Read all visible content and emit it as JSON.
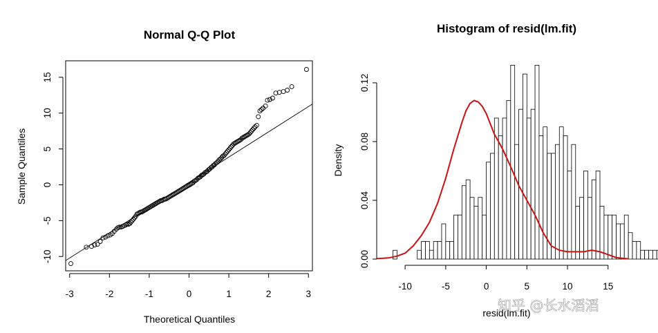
{
  "chart_data": [
    {
      "type": "scatter",
      "title": "Normal Q-Q Plot",
      "xlabel": "Theoretical Quantiles",
      "ylabel": "Sample Quantiles",
      "xlim": [
        -3.1,
        3.1
      ],
      "ylim": [
        -12,
        17.3
      ],
      "xticks": [
        -3,
        -2,
        -1,
        0,
        1,
        2,
        3
      ],
      "yticks": [
        -10,
        -5,
        0,
        5,
        10,
        15
      ],
      "series": [
        {
          "x": [
            -2.97,
            -2.58,
            -2.45,
            -2.37,
            -2.3,
            -2.23,
            -2.16,
            -2.1,
            -2.04,
            -1.98,
            -1.93,
            -1.88,
            -1.83,
            -1.79,
            -1.75,
            -1.71,
            -1.67,
            -1.63,
            -1.59,
            -1.56,
            -1.52,
            -1.49,
            -1.46,
            -1.43,
            -1.4,
            -1.37,
            -1.34,
            -1.31,
            -1.28,
            -1.25,
            -1.22,
            -1.19,
            -1.16,
            -1.13,
            -1.1,
            -1.07,
            -1.04,
            -1.01,
            -0.98,
            -0.95,
            -0.92,
            -0.89,
            -0.86,
            -0.83,
            -0.8,
            -0.77,
            -0.74,
            -0.71,
            -0.68,
            -0.65,
            -0.62,
            -0.59,
            -0.56,
            -0.53,
            -0.5,
            -0.47,
            -0.44,
            -0.41,
            -0.38,
            -0.35,
            -0.32,
            -0.29,
            -0.26,
            -0.23,
            -0.2,
            -0.17,
            -0.14,
            -0.11,
            -0.08,
            -0.05,
            -0.02,
            0.01,
            0.04,
            0.07,
            0.1,
            0.13,
            0.16,
            0.19,
            0.22,
            0.25,
            0.28,
            0.31,
            0.34,
            0.37,
            0.4,
            0.43,
            0.46,
            0.49,
            0.52,
            0.55,
            0.58,
            0.61,
            0.64,
            0.67,
            0.7,
            0.73,
            0.76,
            0.79,
            0.82,
            0.85,
            0.88,
            0.91,
            0.94,
            0.97,
            1.0,
            1.03,
            1.06,
            1.09,
            1.12,
            1.15,
            1.18,
            1.21,
            1.24,
            1.27,
            1.3,
            1.33,
            1.36,
            1.39,
            1.42,
            1.45,
            1.48,
            1.51,
            1.54,
            1.57,
            1.6,
            1.63,
            1.66,
            1.7,
            1.74,
            1.78,
            1.82,
            1.86,
            1.92,
            1.97,
            2.03,
            2.1,
            2.18,
            2.27,
            2.37,
            2.47,
            2.58,
            2.95
          ],
          "y": [
            -11.0,
            -8.7,
            -8.6,
            -8.4,
            -8.3,
            -7.9,
            -7.4,
            -7.3,
            -7.1,
            -7.0,
            -6.8,
            -6.5,
            -6.2,
            -6.0,
            -5.9,
            -5.9,
            -5.8,
            -5.7,
            -5.6,
            -5.5,
            -5.5,
            -5.4,
            -5.2,
            -5.0,
            -4.8,
            -4.6,
            -4.4,
            -4.1,
            -4.0,
            -3.9,
            -3.8,
            -3.8,
            -3.7,
            -3.6,
            -3.5,
            -3.4,
            -3.3,
            -3.2,
            -3.1,
            -3.0,
            -2.9,
            -2.8,
            -2.7,
            -2.6,
            -2.5,
            -2.4,
            -2.3,
            -2.2,
            -2.2,
            -2.1,
            -2.0,
            -2.0,
            -1.9,
            -1.8,
            -1.7,
            -1.6,
            -1.5,
            -1.4,
            -1.3,
            -1.2,
            -1.1,
            -1.0,
            -0.9,
            -0.8,
            -0.7,
            -0.6,
            -0.5,
            -0.4,
            -0.3,
            -0.2,
            -0.1,
            0.0,
            0.1,
            0.2,
            0.3,
            0.5,
            0.6,
            0.7,
            0.9,
            1.0,
            1.1,
            1.3,
            1.4,
            1.5,
            1.7,
            1.8,
            1.9,
            2.1,
            2.2,
            2.4,
            2.5,
            2.7,
            2.8,
            3.0,
            3.1,
            3.3,
            3.5,
            3.6,
            3.8,
            4.0,
            4.1,
            4.3,
            4.5,
            4.7,
            4.9,
            5.1,
            5.3,
            5.5,
            5.7,
            5.8,
            5.9,
            6.0,
            6.1,
            6.2,
            6.3,
            6.5,
            6.6,
            6.7,
            6.8,
            6.9,
            7.0,
            7.1,
            7.3,
            7.5,
            7.7,
            7.9,
            8.1,
            8.3,
            9.5,
            10.3,
            10.5,
            10.7,
            11.0,
            11.8,
            11.9,
            12.1,
            12.8,
            12.9,
            13.0,
            13.2,
            13.7,
            16.1
          ]
        }
      ],
      "reference_line": {
        "intercept": 0.35,
        "slope": 3.52
      }
    },
    {
      "type": "bar",
      "title": "Histogram of resid(lm.fit)",
      "xlabel": "resid(lm.fit)",
      "ylabel": "Density",
      "xlim": [
        -13.5,
        18
      ],
      "ylim": [
        0,
        0.135
      ],
      "xticks": [
        -10,
        -5,
        0,
        5,
        10,
        15
      ],
      "yticks": [
        0.0,
        0.04,
        0.08,
        0.12
      ],
      "bin_width": 0.5,
      "bin_start": -11.5,
      "densities": [
        0.006,
        0.0,
        0.0,
        0.0,
        0.0,
        0.0,
        0.006,
        0.012,
        0.012,
        0.006,
        0.012,
        0.012,
        0.024,
        0.012,
        0.012,
        0.03,
        0.03,
        0.05,
        0.054,
        0.042,
        0.036,
        0.042,
        0.03,
        0.066,
        0.072,
        0.096,
        0.084,
        0.096,
        0.108,
        0.132,
        0.078,
        0.102,
        0.126,
        0.096,
        0.102,
        0.132,
        0.084,
        0.09,
        0.072,
        0.072,
        0.078,
        0.09,
        0.084,
        0.06,
        0.078,
        0.036,
        0.042,
        0.06,
        0.042,
        0.054,
        0.06,
        0.036,
        0.03,
        0.03,
        0.03,
        0.024,
        0.024,
        0.03,
        0.018,
        0.012,
        0.012,
        0.006,
        0.006,
        0.006,
        0.006,
        0.006,
        0.006,
        0.006,
        0.006,
        0.006,
        0.006,
        0.006,
        0.0,
        0.006,
        0.0,
        0.006,
        0.0,
        0.0,
        0.0,
        0.0,
        0.0,
        0.0,
        0.006
      ],
      "density_curve": {
        "color": "#cc1111",
        "x": [
          -13.5,
          -12,
          -11,
          -10,
          -9,
          -8,
          -7,
          -6,
          -5,
          -4,
          -3,
          -2.5,
          -2,
          -1.5,
          -1,
          -0.5,
          0,
          0.5,
          1,
          1.5,
          2,
          3,
          4,
          5,
          6,
          7,
          8,
          9,
          10,
          11,
          12,
          13,
          14,
          15,
          16,
          17.5
        ],
        "y": [
          0.0003,
          0.0008,
          0.002,
          0.004,
          0.009,
          0.016,
          0.025,
          0.038,
          0.055,
          0.075,
          0.093,
          0.101,
          0.106,
          0.108,
          0.107,
          0.104,
          0.099,
          0.092,
          0.085,
          0.08,
          0.075,
          0.063,
          0.05,
          0.04,
          0.03,
          0.018,
          0.009,
          0.006,
          0.005,
          0.005,
          0.005,
          0.006,
          0.005,
          0.003,
          0.001,
          0.0002
        ]
      }
    }
  ],
  "watermark": "知乎 @长水滔滔"
}
